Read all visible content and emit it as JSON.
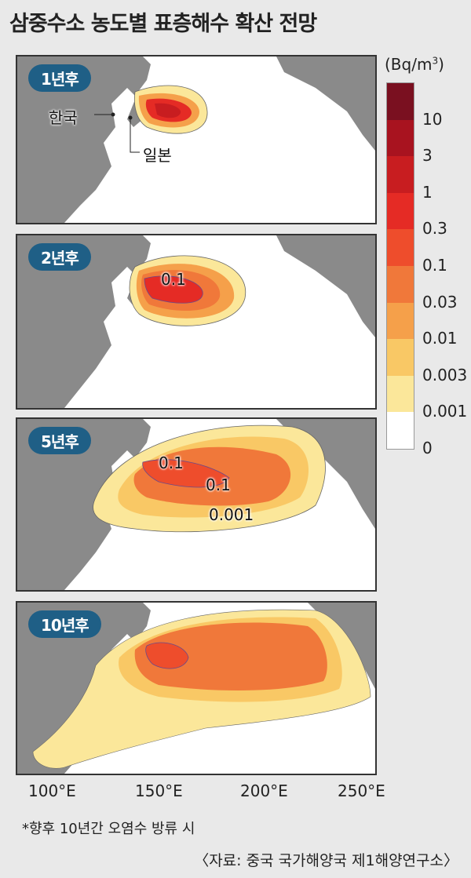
{
  "title": "삼중수소 농도별 표층해수 확산 전망",
  "panels": [
    {
      "badge": "1년후",
      "labels": [
        "한국",
        "일본"
      ]
    },
    {
      "badge": "2년후",
      "labels": [
        "0.1"
      ]
    },
    {
      "badge": "5년후",
      "labels": [
        "0.1",
        "0.1",
        "0.001"
      ]
    },
    {
      "badge": "10년후",
      "labels": []
    }
  ],
  "legend": {
    "unit": "(Bq/m",
    "unit_sup": "3",
    "unit_close": ")",
    "ticks": [
      "10",
      "3",
      "1",
      "0.3",
      "0.1",
      "0.03",
      "0.01",
      "0.003",
      "0.001",
      "0"
    ],
    "colors": [
      "#7a1020",
      "#a8131f",
      "#c81d20",
      "#e52b25",
      "#ee4d2c",
      "#f0783a",
      "#f5a04a",
      "#f9c865",
      "#fbe79a",
      "#ffffff"
    ]
  },
  "x_axis": [
    "100°E",
    "150°E",
    "200°E",
    "250°E"
  ],
  "footnote": "*향후 10년간 오염수 방류 시",
  "source": "〈자료: 중국 국가해양국 제1해양연구소〉"
}
